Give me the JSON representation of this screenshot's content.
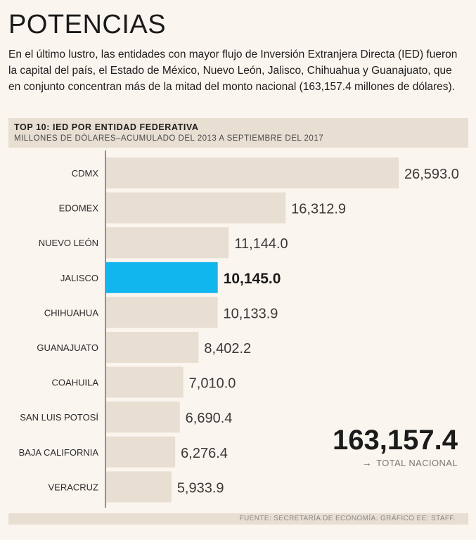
{
  "header": {
    "title": "POTENCIAS",
    "intro": "En el último lustro, las entidades con mayor flujo de Inversión Extranjera Directa (IED) fueron la capital del país, el Estado de México, Nuevo León, Jalisco, Chihuahua y Guanajuato, que en conjunto concentran más de la mitad del monto nacional (163,157.4 millones de dólares)."
  },
  "subhead": {
    "title": "TOP 10: IED POR ENTIDAD FEDERATIVA",
    "subtitle": "MILLONES DE DÓLARES–ACUMULADO DEL 2013 A SEPTIEMBRE DEL 2017"
  },
  "chart_data": {
    "type": "bar",
    "orientation": "horizontal",
    "title": "TOP 10: IED POR ENTIDAD FEDERATIVA",
    "ylabel": "MILLONES DE DÓLARES–ACUMULADO DEL 2013 A SEPTIEMBRE DEL 2017",
    "categories": [
      "CDMX",
      "EDOMEX",
      "NUEVO LEÓN",
      "JALISCO",
      "CHIHUAHUA",
      "GUANAJUATO",
      "COAHUILA",
      "SAN LUIS POTOSÍ",
      "BAJA CALIFORNIA",
      "VERACRUZ"
    ],
    "values": [
      26593.0,
      16312.9,
      11144.0,
      10145.0,
      10133.9,
      8402.2,
      7010.0,
      6690.4,
      6276.4,
      5933.9
    ],
    "value_labels": [
      "26,593.0",
      "16,312.9",
      "11,144.0",
      "10,145.0",
      "10,133.9",
      "8,402.2",
      "7,010.0",
      "6,690.4",
      "6,276.4",
      "5,933.9"
    ],
    "highlight": "JALISCO",
    "xlim": [
      0,
      26593.0
    ]
  },
  "total": {
    "value": "163,157.4",
    "arrow": "→",
    "label": "TOTAL NACIONAL"
  },
  "footer": {
    "source": "FUENTE: SECRETARÍA DE ECONOMÍA. GRÁFICO EE: STAFF."
  },
  "colors": {
    "background": "#fbf5ef",
    "bar": "#e8ded2",
    "highlight": "#12b6ee",
    "axis": "#2b2b2b"
  }
}
